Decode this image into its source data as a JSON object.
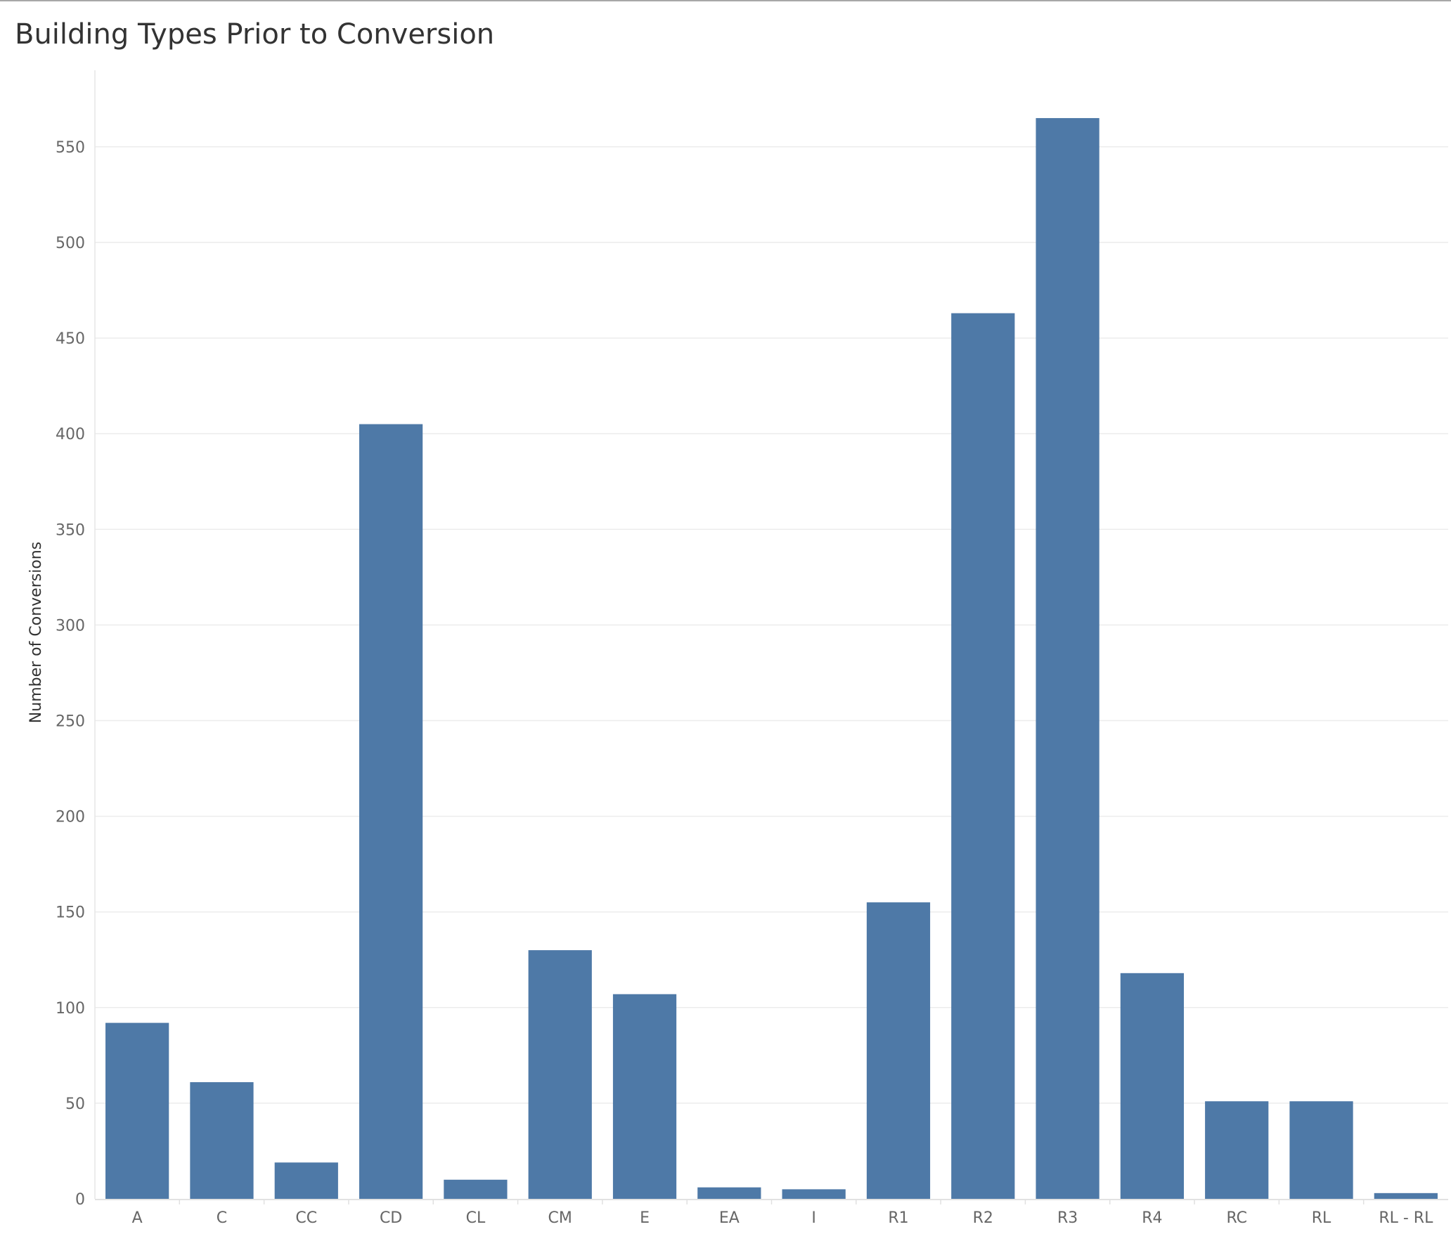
{
  "chart_data": {
    "type": "bar",
    "title": "Building Types Prior to Conversion",
    "xlabel": "",
    "ylabel": "Number of Conversions",
    "categories": [
      "A",
      "C",
      "CC",
      "CD",
      "CL",
      "CM",
      "E",
      "EA",
      "I",
      "R1",
      "R2",
      "R3",
      "R4",
      "RC",
      "RL",
      "RL - RL"
    ],
    "values": [
      92,
      61,
      19,
      405,
      10,
      130,
      107,
      6,
      5,
      155,
      463,
      565,
      118,
      51,
      51,
      3
    ],
    "y_ticks": [
      0,
      50,
      100,
      150,
      200,
      250,
      300,
      350,
      400,
      450,
      500,
      550
    ],
    "ylim": [
      0,
      590
    ],
    "grid": true,
    "bar_color": "#4e79a7"
  }
}
